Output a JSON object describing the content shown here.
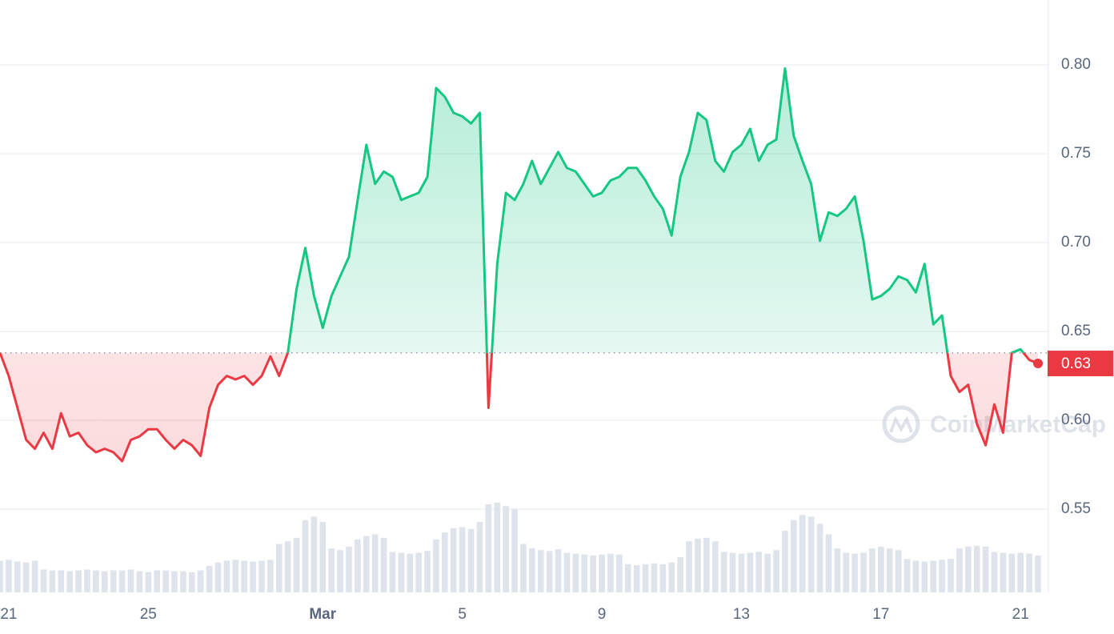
{
  "chart_data": {
    "type": "line",
    "values": [
      0.638,
      0.625,
      0.607,
      0.589,
      0.584,
      0.593,
      0.584,
      0.604,
      0.591,
      0.593,
      0.586,
      0.582,
      0.584,
      0.582,
      0.577,
      0.589,
      0.591,
      0.595,
      0.595,
      0.589,
      0.584,
      0.589,
      0.586,
      0.58,
      0.607,
      0.62,
      0.625,
      0.623,
      0.625,
      0.62,
      0.625,
      0.636,
      0.625,
      0.638,
      0.674,
      0.697,
      0.67,
      0.652,
      0.67,
      0.681,
      0.692,
      0.724,
      0.755,
      0.733,
      0.74,
      0.737,
      0.724,
      0.726,
      0.728,
      0.737,
      0.787,
      0.782,
      0.773,
      0.771,
      0.767,
      0.773,
      0.607,
      0.688,
      0.728,
      0.724,
      0.733,
      0.746,
      0.733,
      0.742,
      0.751,
      0.742,
      0.74,
      0.733,
      0.726,
      0.728,
      0.735,
      0.737,
      0.742,
      0.742,
      0.735,
      0.726,
      0.719,
      0.704,
      0.737,
      0.751,
      0.773,
      0.769,
      0.746,
      0.74,
      0.751,
      0.755,
      0.764,
      0.746,
      0.755,
      0.758,
      0.798,
      0.76,
      0.746,
      0.733,
      0.701,
      0.717,
      0.715,
      0.719,
      0.726,
      0.701,
      0.668,
      0.67,
      0.674,
      0.681,
      0.679,
      0.672,
      0.688,
      0.654,
      0.659,
      0.625,
      0.616,
      0.62,
      0.598,
      0.586,
      0.609,
      0.593,
      0.638,
      0.64,
      0.634,
      0.632
    ],
    "volume": [
      36,
      37,
      35,
      34,
      36,
      26,
      25,
      25,
      24,
      25,
      26,
      25,
      24,
      25,
      25,
      26,
      24,
      23,
      25,
      25,
      24,
      24,
      23,
      25,
      30,
      34,
      36,
      37,
      36,
      35,
      36,
      37,
      55,
      58,
      62,
      82,
      86,
      80,
      50,
      48,
      52,
      60,
      64,
      66,
      62,
      46,
      45,
      44,
      45,
      47,
      60,
      68,
      73,
      74,
      72,
      80,
      100,
      102,
      98,
      95,
      55,
      50,
      48,
      47,
      49,
      45,
      44,
      43,
      42,
      43,
      44,
      43,
      32,
      31,
      32,
      33,
      32,
      34,
      40,
      58,
      61,
      62,
      58,
      46,
      45,
      44,
      45,
      46,
      44,
      48,
      70,
      82,
      88,
      86,
      78,
      66,
      50,
      45,
      44,
      45,
      50,
      52,
      50,
      48,
      38,
      36,
      35,
      36,
      37,
      38,
      50,
      52,
      53,
      52,
      46,
      45,
      44,
      45,
      44,
      42
    ],
    "vlim": [
      0,
      100
    ],
    "up_color": "#16c784",
    "down_color": "#ea3943",
    "baseline": 0.638,
    "current_price": {
      "value": 0.632,
      "label": "0.63"
    },
    "ylim": [
      0.5032,
      0.8365
    ],
    "yticks": [
      0.55,
      {
        "value": 0.6,
        "label": "0.60"
      },
      0.65,
      {
        "value": 0.7,
        "label": "0.70"
      },
      0.75,
      {
        "value": 0.8,
        "label": "0.80"
      }
    ],
    "xticks": [
      {
        "value": 1,
        "label": "21"
      },
      {
        "value": 17,
        "label": "25"
      },
      {
        "value": 37,
        "label": "Mar"
      },
      {
        "value": 53,
        "label": "5"
      },
      {
        "value": 69,
        "label": "9"
      },
      {
        "value": 85,
        "label": "13"
      },
      {
        "value": 101,
        "label": "17"
      },
      {
        "value": 117,
        "label": "21"
      }
    ],
    "grid": true,
    "watermark": "CoinMarketCap"
  }
}
